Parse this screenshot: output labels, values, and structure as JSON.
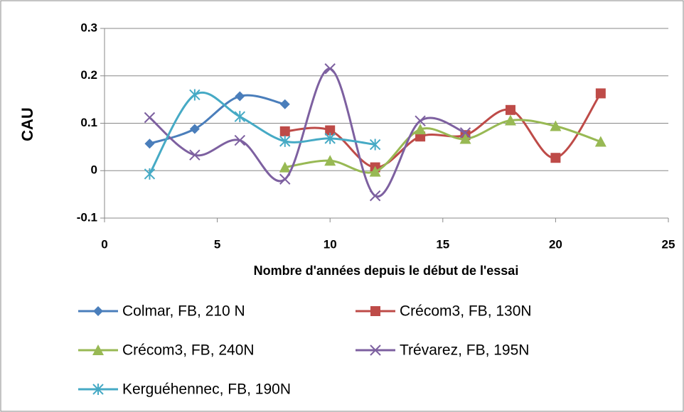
{
  "chart_data": {
    "type": "line",
    "smooth": true,
    "x_label": "Nombre d'années depuis le début de l'essai",
    "y_label": "CAU",
    "xlim": [
      0,
      25
    ],
    "xticks": [
      0,
      5,
      10,
      15,
      20,
      25
    ],
    "ylim": [
      -0.1,
      0.3
    ],
    "yticks": [
      -0.1,
      0,
      0.1,
      0.2,
      0.3
    ],
    "grid": true,
    "legend": "bottom",
    "series": [
      {
        "name": "Colmar, FB, 210 N",
        "color": "#4a7ebb",
        "marker": "diamond",
        "x": [
          2,
          4,
          6,
          8
        ],
        "values": [
          0.057,
          0.088,
          0.157,
          0.14
        ]
      },
      {
        "name": "Crécom3, FB, 130N",
        "color": "#be4b48",
        "marker": "square",
        "x": [
          8,
          10,
          12,
          14,
          16,
          18,
          20,
          22
        ],
        "values": [
          0.083,
          0.085,
          0.007,
          0.072,
          0.075,
          0.128,
          0.027,
          0.163
        ]
      },
      {
        "name": "Crécom3, FB, 240N",
        "color": "#98b954",
        "marker": "triangle",
        "x": [
          8,
          10,
          12,
          14,
          16,
          18,
          20,
          22
        ],
        "values": [
          0.007,
          0.021,
          -0.002,
          0.087,
          0.067,
          0.106,
          0.094,
          0.061
        ]
      },
      {
        "name": "Trévarez, FB, 195N",
        "color": "#7d60a0",
        "marker": "x",
        "x": [
          2,
          4,
          6,
          8,
          10,
          12,
          14,
          16
        ],
        "values": [
          0.112,
          0.033,
          0.064,
          -0.018,
          0.215,
          -0.053,
          0.105,
          0.08
        ]
      },
      {
        "name": "Kerguéhennec, FB, 190N",
        "color": "#46aac5",
        "marker": "star",
        "x": [
          2,
          4,
          6,
          8,
          10,
          12
        ],
        "values": [
          -0.007,
          0.16,
          0.114,
          0.062,
          0.068,
          0.055
        ]
      }
    ]
  }
}
